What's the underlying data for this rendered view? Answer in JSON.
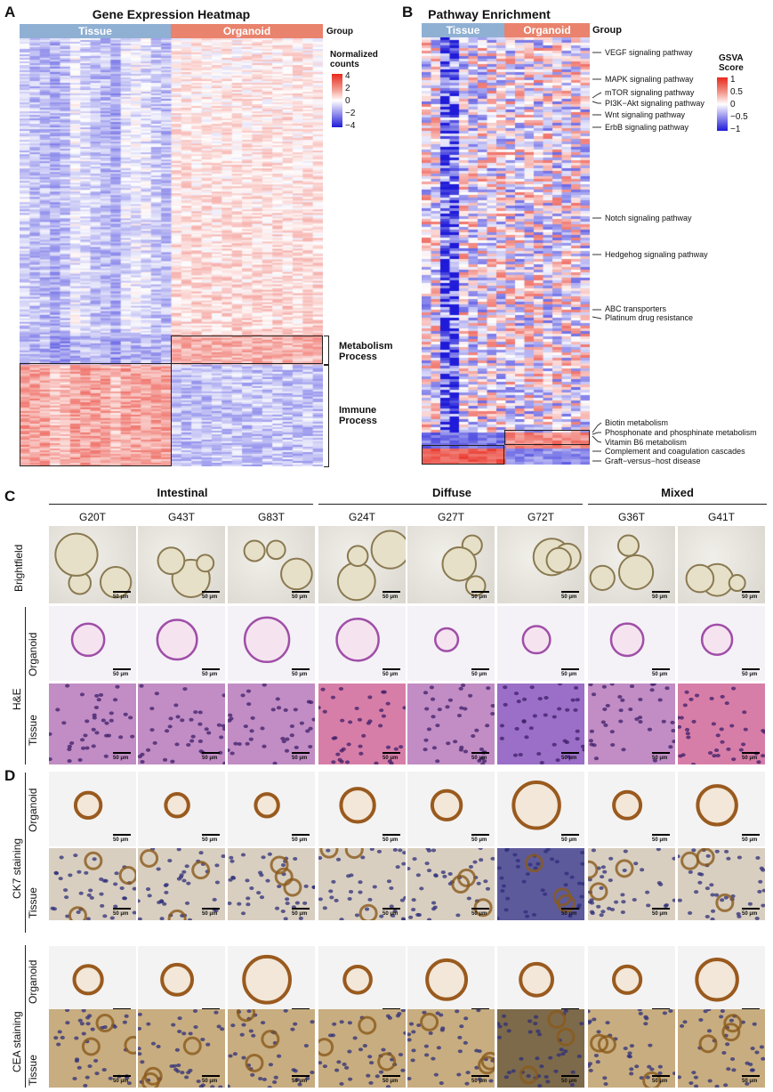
{
  "panelA": {
    "letter": "A",
    "title": "Gene Expression Heatmap",
    "group_label": "Group",
    "groups": [
      "Tissue",
      "Organoid"
    ],
    "legend_title": "Normalized counts",
    "legend_ticks": [
      "4",
      "2",
      "0",
      "−2",
      "−4"
    ],
    "annotations": [
      "Metabolism Process",
      "Immune Process"
    ]
  },
  "panelB": {
    "letter": "B",
    "title": "Pathway Enrichment",
    "group_label": "Group",
    "groups": [
      "Tissue",
      "Organoid"
    ],
    "legend_title": "GSVA Score",
    "legend_ticks": [
      "1",
      "0.5",
      "0",
      "−0.5",
      "−1"
    ],
    "pathways": [
      "VEGF signaling pathway",
      "MAPK signaling pathway",
      "mTOR signaling pathway",
      "PI3K−Akt signaling pathway",
      "Wnt signaling pathway",
      "ErbB signaling pathway",
      "Notch signaling pathway",
      "Hedgehog signaling pathway",
      "ABC transporters",
      "Platinum drug resistance",
      "Biotin metabolism",
      "Phosphonate and phosphinate metabolism",
      "Vitamin B6 metabolism",
      "Complement and coagulation cascades",
      "Graft−versus−host disease"
    ]
  },
  "panelC": {
    "letter": "C",
    "categories": [
      "Intestinal",
      "Diffuse",
      "Mixed"
    ],
    "samples": [
      "G20T",
      "G43T",
      "G83T",
      "G24T",
      "G27T",
      "G72T",
      "G36T",
      "G41T"
    ],
    "row_labels": [
      "Brightfield",
      "Organoid",
      "Tissue"
    ],
    "group_label": "H&E",
    "scale": "50 μm"
  },
  "panelD": {
    "letter": "D",
    "row_labels": [
      "Organoid",
      "Tissue",
      "Organoid",
      "Tissue"
    ],
    "group_labels": [
      "CK7 staining",
      "CEA staining"
    ],
    "scale": "50 μm"
  },
  "colors": {
    "tissue": "#8fb0d3",
    "organoid": "#e9836d",
    "heat_high": "#e8291c",
    "heat_mid": "#ffffff",
    "heat_low": "#1f1bd8"
  }
}
